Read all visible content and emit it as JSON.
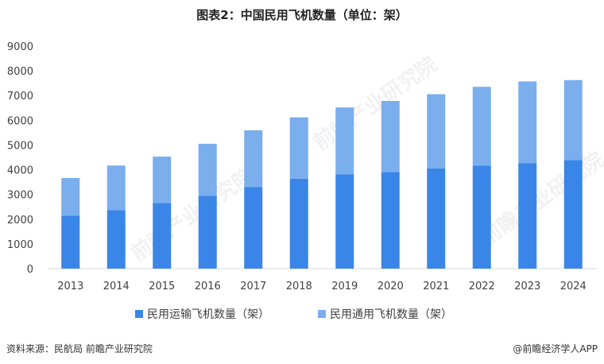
{
  "title": "图表2：中国民用飞机数量（单位：架）",
  "colors": {
    "transport": "#3a86e8",
    "general": "#7aaeed",
    "axis": "#d9d9d9",
    "text": "#404040"
  },
  "chart_data": {
    "type": "bar",
    "stacked": true,
    "categories": [
      "2013",
      "2014",
      "2015",
      "2016",
      "2017",
      "2018",
      "2019",
      "2020",
      "2021",
      "2022",
      "2023",
      "2024"
    ],
    "series": [
      {
        "name": "民用运输飞机数量（架）",
        "values": [
          2145,
          2370,
          2650,
          2950,
          3296,
          3639,
          3818,
          3903,
          4054,
          4165,
          4270,
          4395
        ]
      },
      {
        "name": "民用通用飞机数量（架）",
        "values": [
          1520,
          1800,
          1880,
          2100,
          2300,
          2480,
          2700,
          2880,
          3000,
          3190,
          3300,
          3230
        ]
      }
    ],
    "yticks": [
      0,
      1000,
      2000,
      3000,
      4000,
      5000,
      6000,
      7000,
      8000,
      9000
    ],
    "ylim": [
      0,
      9000
    ],
    "legend_position": "bottom",
    "grid": false
  },
  "watermark": "前瞻产业研究院",
  "footer": {
    "source": "资料来源：民航局 前瞻产业研究院",
    "credit": "@前瞻经济学人APP"
  }
}
